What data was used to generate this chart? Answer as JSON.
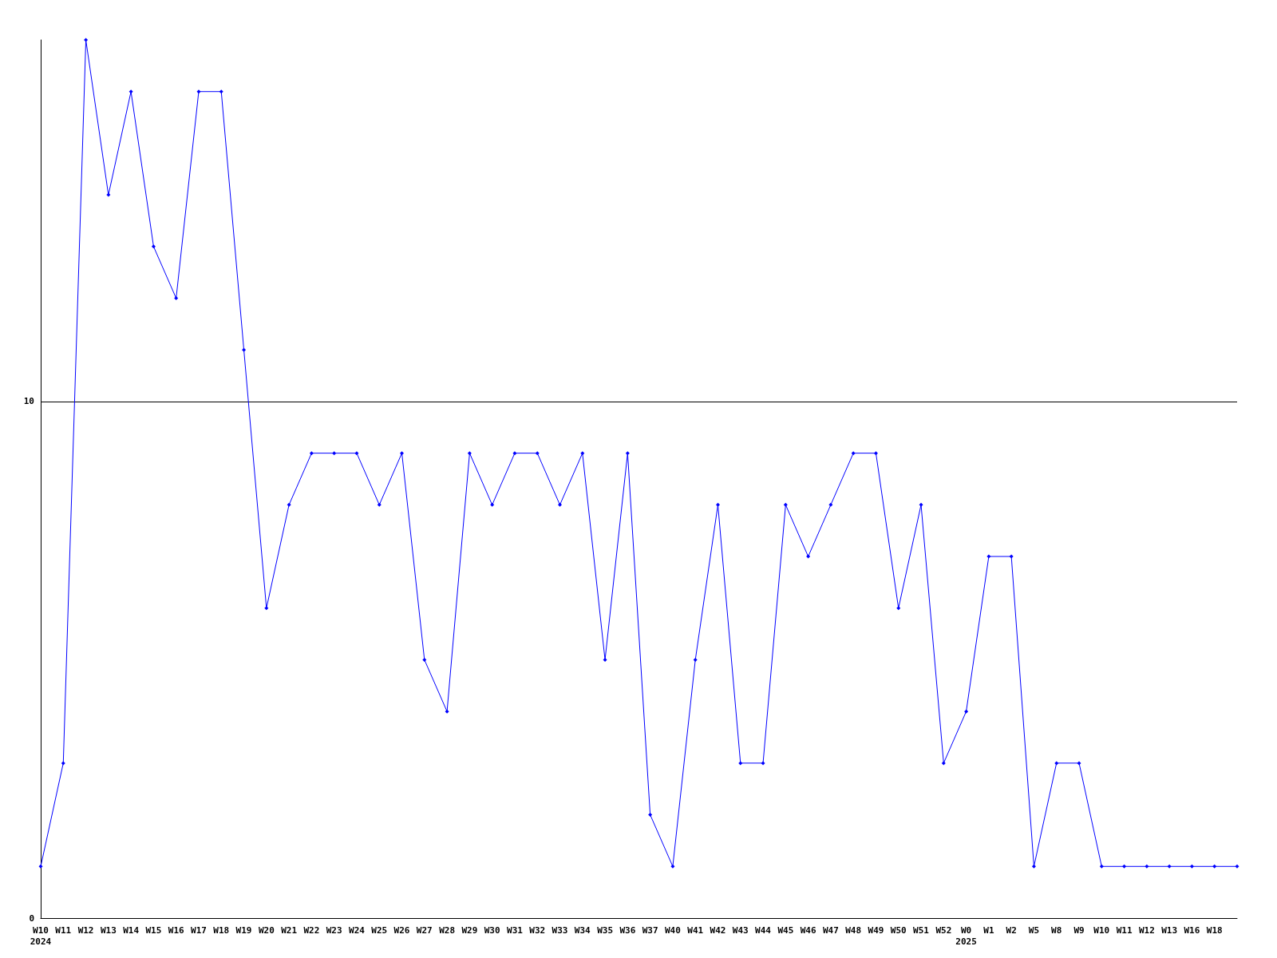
{
  "chart_data": {
    "type": "line",
    "categories": [
      "W10\n2024",
      "W11",
      "W12",
      "W13",
      "W14",
      "W15",
      "W16",
      "W17",
      "W18",
      "W19",
      "W20",
      "W21",
      "W22",
      "W23",
      "W24",
      "W25",
      "W26",
      "W27",
      "W28",
      "W29",
      "W30",
      "W31",
      "W32",
      "W33",
      "W34",
      "W35",
      "W36",
      "W37",
      "W40",
      "W41",
      "W42",
      "W43",
      "W44",
      "W45",
      "W46",
      "W47",
      "W48",
      "W49",
      "W50",
      "W51",
      "W52",
      "W0\n2025",
      "W1",
      "W2",
      "W5",
      "W8",
      "W9",
      "W10",
      "W11",
      "W12",
      "W13",
      "W16",
      "W18",
      null
    ],
    "series": [
      {
        "color": "#0000ff",
        "values": [
          1,
          3,
          17,
          14,
          16,
          13,
          12,
          16,
          16,
          11,
          6,
          8,
          9,
          9,
          9,
          8,
          9,
          5,
          4,
          9,
          8,
          9,
          9,
          8,
          9,
          5,
          9,
          2,
          1,
          5,
          8,
          3,
          3,
          8,
          7,
          8,
          9,
          9,
          6,
          8,
          3,
          4,
          7,
          7,
          1,
          3,
          3,
          1,
          1,
          1,
          1,
          1,
          1,
          1
        ]
      }
    ],
    "ylim": [
      0,
      17
    ],
    "yticks": [
      0,
      10
    ],
    "grid": "y",
    "marker": "diamond",
    "line_style": "solid"
  }
}
